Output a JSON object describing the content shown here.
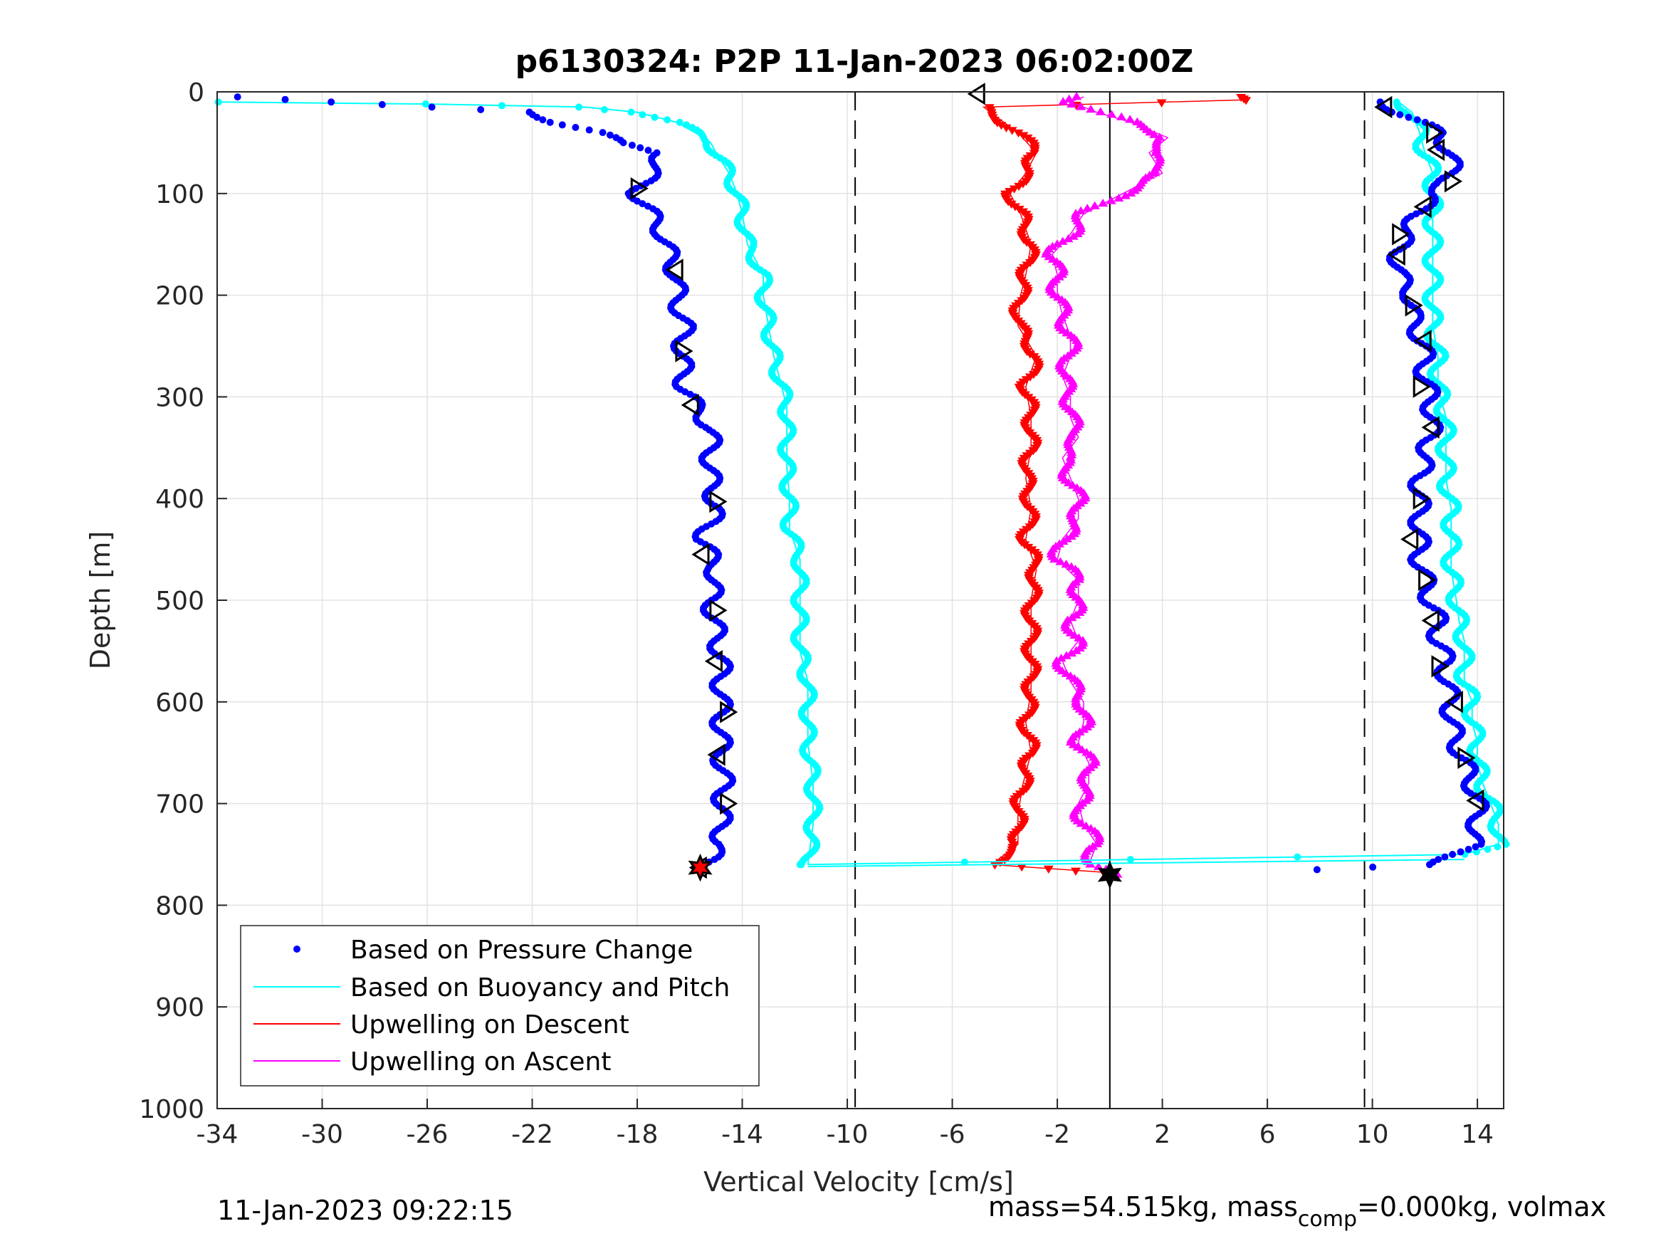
{
  "chart_data": {
    "type": "scatter",
    "title": "p6130324: P2P 11-Jan-2023 06:02:00Z",
    "xlabel": "Vertical Velocity [cm/s]",
    "ylabel": "Depth [m]",
    "xlim": [
      -34,
      15
    ],
    "ylim": [
      0,
      1000
    ],
    "y_reversed": true,
    "grid": true,
    "xticks": [
      "-34",
      "-30",
      "-26",
      "-22",
      "-18",
      "-14",
      "-10",
      "-6",
      "-2",
      "2",
      "6",
      "10",
      "14"
    ],
    "yticks": [
      "0",
      "100",
      "200",
      "300",
      "400",
      "500",
      "600",
      "700",
      "800",
      "900",
      "1000"
    ],
    "reference_lines": [
      {
        "x": -9.7,
        "style": "dashed",
        "color": "#000000"
      },
      {
        "x": 9.7,
        "style": "dashed",
        "color": "#000000"
      },
      {
        "x": 0,
        "style": "solid",
        "color": "#000000"
      }
    ],
    "legend_position": "bottom-left",
    "series": [
      {
        "name": "Based on Pressure Change",
        "color": "#0000ff",
        "marker": "dot",
        "descent": {
          "depth": [
            5,
            10,
            15,
            20,
            30,
            40,
            50,
            60,
            70,
            80,
            90,
            100,
            120,
            140,
            160,
            180,
            200,
            230,
            260,
            290,
            310,
            330,
            350,
            380,
            410,
            440,
            470,
            500,
            530,
            560,
            590,
            620,
            650,
            680,
            710,
            740,
            760
          ],
          "vel": [
            -33.5,
            -30,
            -26,
            -22,
            -21,
            -19.5,
            -18.8,
            -17,
            -17.2,
            -17.5,
            -17.8,
            -18,
            -17.5,
            -17,
            -16.8,
            -16.5,
            -16.5,
            -16.2,
            -16.3,
            -16.2,
            -15.8,
            -15.2,
            -15.2,
            -15.2,
            -15,
            -15.5,
            -15,
            -15.2,
            -15,
            -14.8,
            -14.8,
            -14.8,
            -14.8,
            -14.7,
            -14.8,
            -14.8,
            -15.5
          ]
        },
        "ascent": {
          "depth": [
            765,
            760,
            740,
            720,
            700,
            680,
            660,
            640,
            620,
            600,
            580,
            560,
            540,
            520,
            500,
            480,
            460,
            440,
            420,
            400,
            380,
            360,
            340,
            320,
            300,
            280,
            260,
            240,
            220,
            200,
            180,
            160,
            140,
            120,
            100,
            90,
            80,
            60,
            40,
            20,
            10
          ],
          "vel": [
            8,
            12.5,
            13.8,
            14,
            14,
            13.8,
            13.5,
            13.2,
            13,
            13,
            12.8,
            12.8,
            12.5,
            12.5,
            12.2,
            12,
            11.8,
            11.8,
            11.8,
            11.8,
            11.8,
            12,
            12.2,
            12.3,
            12.2,
            12,
            12,
            11.8,
            11.5,
            11.5,
            11,
            11,
            11.2,
            11.8,
            12.2,
            12.8,
            13,
            13,
            12.5,
            11,
            10.5
          ]
        },
        "triangle_markers_descent": [
          {
            "depth": 95,
            "vel": -18
          },
          {
            "depth": 175,
            "vel": -16.5
          },
          {
            "depth": 255,
            "vel": -16.3
          },
          {
            "depth": 308,
            "vel": -15.9
          },
          {
            "depth": 403,
            "vel": -15
          },
          {
            "depth": 455,
            "vel": -15.5
          },
          {
            "depth": 510,
            "vel": -15
          },
          {
            "depth": 560,
            "vel": -15
          },
          {
            "depth": 610,
            "vel": -14.6
          },
          {
            "depth": 652,
            "vel": -14.9
          },
          {
            "depth": 700,
            "vel": -14.6
          },
          {
            "depth": 763,
            "vel": -15.6
          }
        ],
        "triangle_markers_ascent": [
          {
            "depth": 15,
            "vel": 10.5
          },
          {
            "depth": 40,
            "vel": 12.3
          },
          {
            "depth": 57,
            "vel": 12.5
          },
          {
            "depth": 88,
            "vel": 13
          },
          {
            "depth": 113,
            "vel": 12
          },
          {
            "depth": 140,
            "vel": 11
          },
          {
            "depth": 160,
            "vel": 11
          },
          {
            "depth": 210,
            "vel": 11.5
          },
          {
            "depth": 245,
            "vel": 12
          },
          {
            "depth": 290,
            "vel": 11.8
          },
          {
            "depth": 330,
            "vel": 12.3
          },
          {
            "depth": 400,
            "vel": 11.8
          },
          {
            "depth": 440,
            "vel": 11.5
          },
          {
            "depth": 480,
            "vel": 12
          },
          {
            "depth": 520,
            "vel": 12.3
          },
          {
            "depth": 565,
            "vel": 12.5
          },
          {
            "depth": 600,
            "vel": 13.2
          },
          {
            "depth": 655,
            "vel": 13.5
          },
          {
            "depth": 697,
            "vel": 14
          }
        ]
      },
      {
        "name": "Based on Buoyancy and Pitch",
        "color": "#00ffff",
        "marker": "line+dot",
        "descent": {
          "depth": [
            10,
            12,
            15,
            20,
            30,
            40,
            50,
            60,
            80,
            100,
            120,
            150,
            180,
            200,
            230,
            260,
            290,
            310,
            340,
            370,
            400,
            430,
            460,
            490,
            520,
            550,
            580,
            610,
            640,
            680,
            720,
            760
          ],
          "vel": [
            -34,
            -26,
            -20,
            -18,
            -16.5,
            -15.8,
            -15.2,
            -15,
            -14.5,
            -14.2,
            -14,
            -13.8,
            -13.2,
            -13.2,
            -13,
            -12.8,
            -12.5,
            -12.3,
            -12.3,
            -12.3,
            -12.2,
            -12.2,
            -11.8,
            -11.8,
            -11.8,
            -11.8,
            -11.5,
            -11.5,
            -11.5,
            -11.3,
            -11.3,
            -11.5
          ]
        },
        "ascent": {
          "depth": [
            760,
            750,
            740,
            720,
            700,
            680,
            660,
            640,
            620,
            600,
            580,
            560,
            540,
            520,
            500,
            470,
            440,
            410,
            380,
            350,
            320,
            290,
            260,
            230,
            200,
            170,
            140,
            110,
            80,
            60,
            40,
            20,
            10
          ],
          "vel": [
            -11.5,
            13.5,
            14.8,
            14.8,
            14.5,
            14.2,
            14,
            14,
            13.8,
            13.8,
            13.5,
            13.5,
            13.5,
            13.3,
            13.2,
            13,
            13,
            13,
            12.8,
            12.8,
            12.8,
            12.5,
            12.5,
            12.3,
            12.3,
            12.3,
            12.3,
            12.3,
            12.3,
            12,
            11.8,
            11.5,
            11
          ]
        },
        "connector": {
          "depth": [
            762,
            755
          ],
          "vel": [
            -11.5,
            13.5
          ]
        }
      },
      {
        "name": "Upwelling on Descent",
        "color": "#ff0000",
        "marker": "line+triangle-down",
        "depth": [
          5,
          8,
          15,
          25,
          40,
          60,
          80,
          100,
          120,
          150,
          180,
          200,
          230,
          260,
          290,
          320,
          350,
          380,
          410,
          440,
          470,
          500,
          530,
          560,
          590,
          620,
          650,
          680,
          710,
          740,
          760,
          768
        ],
        "vel": [
          5,
          5,
          -4.8,
          -4.3,
          -3.5,
          -2.8,
          -3.2,
          -3.8,
          -3.4,
          -3,
          -3.2,
          -3.4,
          -3.5,
          -2.8,
          -3.2,
          -3,
          -3,
          -3.2,
          -3,
          -3.2,
          -2.8,
          -3,
          -3,
          -3,
          -3,
          -3.2,
          -3,
          -3.3,
          -3.5,
          -3.5,
          -4.5,
          0
        ]
      },
      {
        "name": "Upwelling on Ascent",
        "color": "#ff00ff",
        "marker": "line+triangle-up",
        "depth": [
          770,
          760,
          740,
          720,
          700,
          680,
          660,
          640,
          620,
          600,
          580,
          560,
          540,
          520,
          500,
          480,
          460,
          440,
          420,
          400,
          380,
          360,
          340,
          320,
          300,
          280,
          260,
          240,
          220,
          200,
          180,
          160,
          140,
          120,
          100,
          80,
          60,
          45,
          30,
          20,
          10,
          5
        ],
        "vel": [
          0,
          -0.8,
          -0.5,
          -1,
          -1.2,
          -0.8,
          -0.8,
          -1.2,
          -1,
          -1,
          -1.5,
          -1.8,
          -1.2,
          -1.5,
          -1.2,
          -1.2,
          -2,
          -1.8,
          -1.2,
          -1.2,
          -1.5,
          -1.8,
          -1.2,
          -1.5,
          -1.5,
          -1.8,
          -1.5,
          -1.5,
          -1.8,
          -2,
          -2,
          -2.2,
          -1.5,
          -1,
          0.5,
          2,
          1.5,
          2.2,
          0.8,
          -0.5,
          -1.5,
          -1
        ]
      }
    ],
    "end_markers": [
      {
        "depth": 763,
        "vel": -15.6,
        "shape": "hexagram",
        "fill": "#ff0000"
      },
      {
        "depth": 770,
        "vel": 0,
        "shape": "hexagram",
        "fill": "#000000"
      }
    ],
    "start_marker": {
      "depth": 2,
      "vel": -5,
      "shape": "triangle-left"
    }
  },
  "footer": {
    "timestamp": "11-Jan-2023 09:22:15",
    "mass_text_1": "mass=54.515kg, mass",
    "mass_sub": "comp",
    "mass_text_2": "=0.000kg, volmax"
  }
}
